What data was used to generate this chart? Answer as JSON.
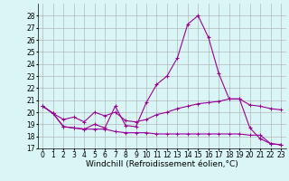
{
  "x": [
    0,
    1,
    2,
    3,
    4,
    5,
    6,
    7,
    8,
    9,
    10,
    11,
    12,
    13,
    14,
    15,
    16,
    17,
    18,
    19,
    20,
    21,
    22,
    23
  ],
  "line1": [
    20.5,
    19.9,
    18.8,
    18.7,
    18.6,
    19.0,
    18.7,
    20.5,
    18.9,
    18.8,
    20.8,
    22.3,
    23.0,
    24.5,
    27.3,
    28.0,
    26.2,
    23.2,
    21.1,
    21.1,
    18.7,
    17.8,
    17.4,
    17.3
  ],
  "line2": [
    20.5,
    19.9,
    18.8,
    18.7,
    18.6,
    18.6,
    18.6,
    18.4,
    18.3,
    18.3,
    18.3,
    18.2,
    18.2,
    18.2,
    18.2,
    18.2,
    18.2,
    18.2,
    18.2,
    18.2,
    18.1,
    18.1,
    17.4,
    17.3
  ],
  "line3": [
    20.5,
    19.9,
    19.4,
    19.6,
    19.2,
    20.0,
    19.7,
    20.0,
    19.3,
    19.2,
    19.4,
    19.8,
    20.0,
    20.3,
    20.5,
    20.7,
    20.8,
    20.9,
    21.1,
    21.1,
    20.6,
    20.5,
    20.3,
    20.2
  ],
  "ylim": [
    17,
    29
  ],
  "xlim": [
    -0.5,
    23.5
  ],
  "yticks": [
    17,
    18,
    19,
    20,
    21,
    22,
    23,
    24,
    25,
    26,
    27,
    28
  ],
  "xticks": [
    0,
    1,
    2,
    3,
    4,
    5,
    6,
    7,
    8,
    9,
    10,
    11,
    12,
    13,
    14,
    15,
    16,
    17,
    18,
    19,
    20,
    21,
    22,
    23
  ],
  "line_color": "#990099",
  "bg_color": "#d9f5f5",
  "grid_color": "#aaaaaa",
  "xlabel": "Windchill (Refroidissement éolien,°C)",
  "xlabel_fontsize": 6.5,
  "tick_fontsize": 5.5
}
